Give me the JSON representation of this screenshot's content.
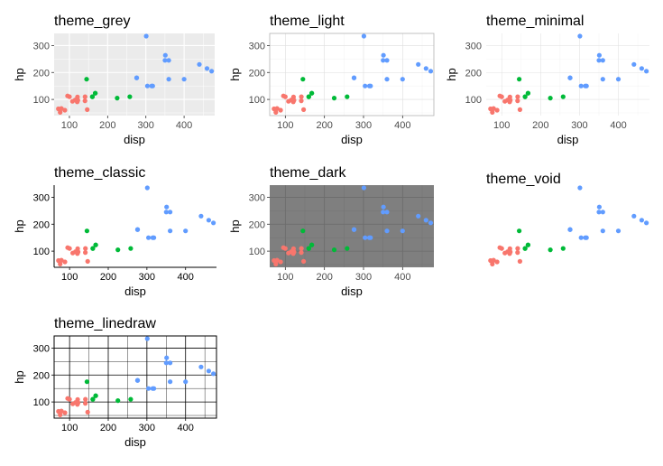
{
  "chart_data": {
    "type": "scatter",
    "xlabel": "disp",
    "ylabel": "hp",
    "xlim": [
      60,
      480
    ],
    "ylim": [
      40,
      345
    ],
    "x_ticks": [
      100,
      200,
      300,
      400
    ],
    "y_ticks": [
      100,
      200,
      300
    ],
    "panels": [
      {
        "title": "theme_grey",
        "theme": "grey"
      },
      {
        "title": "theme_light",
        "theme": "light"
      },
      {
        "title": "theme_minimal",
        "theme": "minimal"
      },
      {
        "title": "theme_classic",
        "theme": "classic"
      },
      {
        "title": "theme_dark",
        "theme": "dark"
      },
      {
        "title": "theme_void",
        "theme": "void"
      },
      {
        "title": "theme_linedraw",
        "theme": "linedraw"
      }
    ],
    "series": [
      {
        "color": "#F8766D",
        "points": [
          [
            108,
            93
          ],
          [
            146.7,
            62
          ],
          [
            140.8,
            95
          ],
          [
            78.7,
            66
          ],
          [
            75.7,
            52
          ],
          [
            71.1,
            65
          ],
          [
            120.1,
            97
          ],
          [
            79,
            66
          ],
          [
            120.3,
            91
          ],
          [
            95.1,
            113
          ],
          [
            121,
            109
          ],
          [
            141,
            110
          ],
          [
            122,
            97
          ],
          [
            88,
            60
          ],
          [
            100,
            110
          ],
          [
            115,
            98
          ]
        ]
      },
      {
        "color": "#00BA38",
        "points": [
          [
            160,
            110
          ],
          [
            160,
            110
          ],
          [
            258,
            110
          ],
          [
            225,
            105
          ],
          [
            167.6,
            123
          ],
          [
            167.6,
            123
          ],
          [
            145,
            175
          ]
        ]
      },
      {
        "color": "#619CFF",
        "points": [
          [
            360,
            175
          ],
          [
            360,
            245
          ],
          [
            275.8,
            180
          ],
          [
            275.8,
            180
          ],
          [
            275.8,
            180
          ],
          [
            472,
            205
          ],
          [
            460,
            215
          ],
          [
            440,
            230
          ],
          [
            318,
            150
          ],
          [
            304,
            150
          ],
          [
            350,
            245
          ],
          [
            400,
            175
          ],
          [
            351,
            264
          ],
          [
            301,
            335
          ],
          [
            315,
            150
          ]
        ]
      }
    ]
  }
}
